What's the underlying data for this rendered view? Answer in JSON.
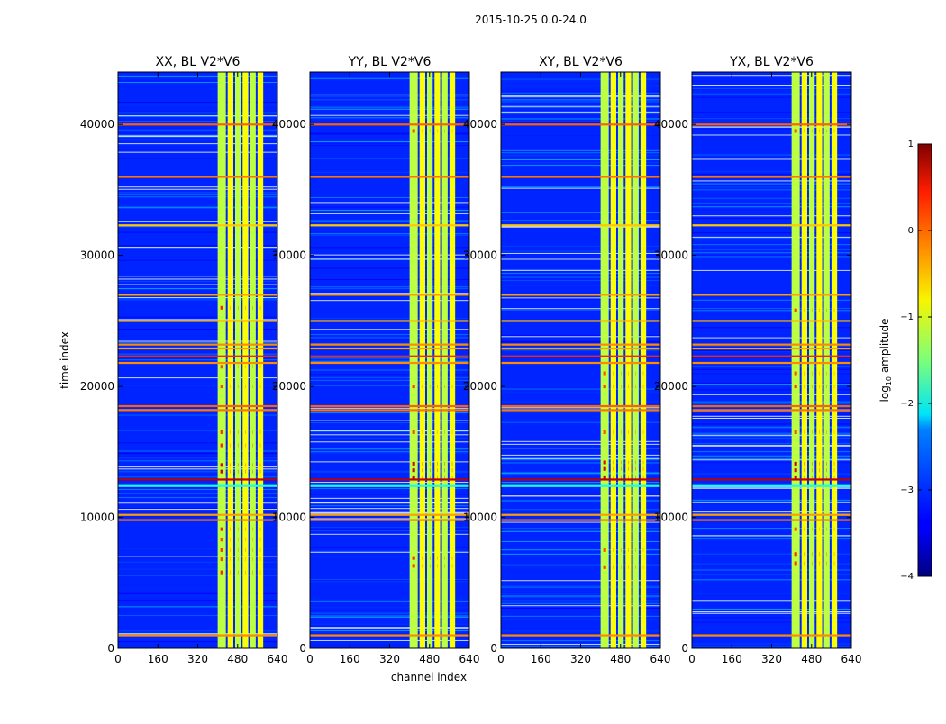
{
  "chart_data": {
    "type": "heatmap",
    "suptitle": "2015-10-25 0.0-24.0",
    "xlabel": "channel index",
    "ylabel": "time index",
    "xlim": [
      0,
      640
    ],
    "ylim": [
      0,
      44000
    ],
    "xticks": [
      0,
      160,
      320,
      480,
      640
    ],
    "yticks": [
      0,
      10000,
      20000,
      30000,
      40000
    ],
    "panels": [
      {
        "title": "XX, BL V2*V6"
      },
      {
        "title": "YY, BL V2*V6"
      },
      {
        "title": "XY, BL V2*V6"
      },
      {
        "title": "YX, BL V2*V6"
      }
    ],
    "colorbar": {
      "label": "log10 amplitude",
      "label_prefix": "log",
      "label_sub": "10",
      "label_suffix": " amplitude",
      "range": [
        -4,
        1
      ],
      "ticks": [
        -4,
        -3,
        -2,
        -1,
        0,
        1
      ],
      "tick_labels": [
        "−4",
        "−3",
        "−2",
        "−1",
        "0",
        "1"
      ]
    },
    "band_channels": [
      [
        400,
        440
      ],
      [
        440,
        470
      ],
      [
        470,
        500
      ],
      [
        500,
        530
      ],
      [
        530,
        560
      ],
      [
        560,
        590
      ]
    ],
    "hot_rows": [
      1000,
      9800,
      10200,
      12400,
      12900,
      18200,
      18500,
      21800,
      22300,
      22900,
      23200,
      25000,
      27000,
      32300,
      36000,
      40000
    ],
    "hot_values": [
      -0.3,
      -0.2,
      -0.4,
      -2.0,
      0.7,
      -0.2,
      -0.1,
      -0.3,
      0.2,
      -0.4,
      -0.3,
      -0.5,
      -0.4,
      -0.6,
      -0.2,
      -0.1
    ],
    "band_hotspots": {
      "XX": [
        [
          5800,
          0.2
        ],
        [
          6800,
          0.0
        ],
        [
          7500,
          0.1
        ],
        [
          8300,
          0.0
        ],
        [
          9100,
          0.2
        ],
        [
          13500,
          0.6
        ],
        [
          14000,
          0.5
        ],
        [
          15500,
          0.2
        ],
        [
          16500,
          0.1
        ],
        [
          20000,
          0.0
        ],
        [
          21500,
          0.0
        ],
        [
          26000,
          0.2
        ]
      ],
      "YY": [
        [
          6300,
          0.1
        ],
        [
          6900,
          0.2
        ],
        [
          13000,
          0.7
        ],
        [
          13600,
          0.6
        ],
        [
          14100,
          0.5
        ],
        [
          16500,
          0.0
        ],
        [
          20000,
          0.1
        ],
        [
          39500,
          0.0
        ]
      ],
      "XY": [
        [
          6200,
          0.1
        ],
        [
          7500,
          0.0
        ],
        [
          13000,
          0.7
        ],
        [
          13700,
          0.6
        ],
        [
          14200,
          0.5
        ],
        [
          16500,
          0.0
        ],
        [
          20000,
          0.1
        ],
        [
          21000,
          0.0
        ]
      ],
      "YX": [
        [
          6500,
          0.1
        ],
        [
          7200,
          0.2
        ],
        [
          9100,
          0.0
        ],
        [
          13000,
          0.6
        ],
        [
          13600,
          0.5
        ],
        [
          14100,
          0.6
        ],
        [
          16500,
          0.0
        ],
        [
          20000,
          0.1
        ],
        [
          21000,
          0.0
        ],
        [
          25800,
          0.1
        ],
        [
          39500,
          0.0
        ]
      ]
    }
  }
}
